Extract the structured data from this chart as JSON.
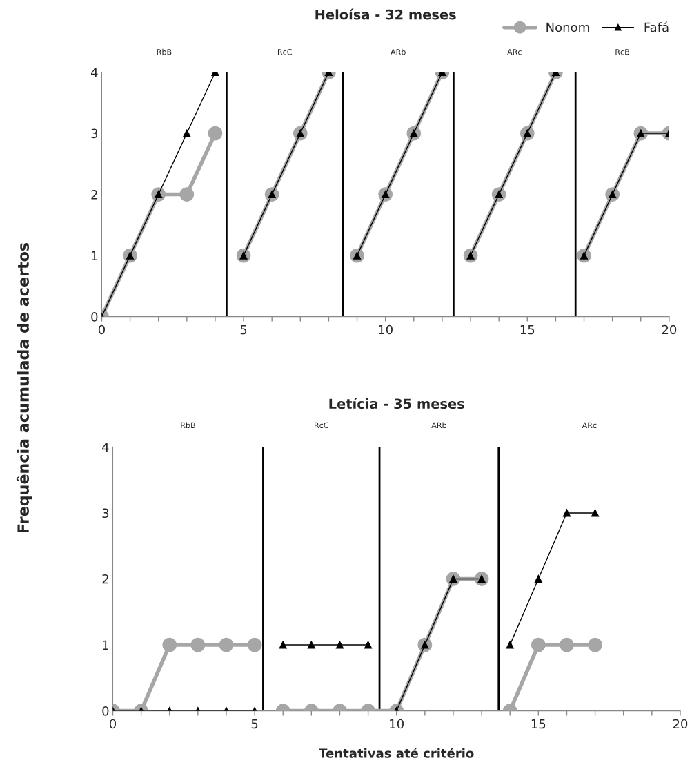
{
  "chart_data": [
    {
      "type": "line",
      "title": "Heloísa - 32 meses",
      "ylabel": "Frequência acumulada de acertos",
      "xlim": [
        0,
        20
      ],
      "ylim": [
        0,
        4
      ],
      "xticks": [
        0,
        {
          "value": 1,
          "label": null
        },
        {
          "value": 2,
          "label": null
        },
        {
          "value": 3,
          "label": null
        },
        {
          "value": 4,
          "label": null
        },
        5,
        {
          "value": 6,
          "label": null
        },
        {
          "value": 7,
          "label": null
        },
        {
          "value": 8,
          "label": null
        },
        {
          "value": 9,
          "label": null
        },
        10,
        {
          "value": 11,
          "label": null
        },
        {
          "value": 12,
          "label": null
        },
        {
          "value": 13,
          "label": null
        },
        {
          "value": 14,
          "label": null
        },
        15,
        {
          "value": 16,
          "label": null
        },
        {
          "value": 17,
          "label": null
        },
        {
          "value": 18,
          "label": null
        },
        {
          "value": 19,
          "label": null
        },
        20
      ],
      "yticks": [
        0,
        1,
        2,
        3,
        4
      ],
      "grid": false,
      "legend": "top right",
      "series": [
        {
          "name": "Nonom",
          "color": "#a6a6a6",
          "marker": "circle",
          "x": [
            0,
            1,
            2,
            3,
            4,
            4.5,
            5,
            6,
            7,
            8,
            8.5,
            9,
            10,
            11,
            12,
            12.5,
            13,
            14,
            15,
            16,
            16.5,
            17,
            18,
            19,
            20
          ],
          "values": [
            0,
            1,
            2,
            2,
            3,
            null,
            1,
            2,
            3,
            4,
            null,
            1,
            2,
            3,
            4,
            null,
            1,
            2,
            3,
            4,
            null,
            1,
            2,
            3,
            3
          ]
        },
        {
          "name": "Fafá",
          "color": "#000000",
          "marker": "triangle",
          "x": [
            0,
            1,
            2,
            3,
            4,
            4.5,
            5,
            6,
            7,
            8,
            8.5,
            9,
            10,
            11,
            12,
            12.5,
            13,
            14,
            15,
            16,
            16.5,
            17,
            18,
            19,
            20
          ],
          "values": [
            0,
            1,
            2,
            3,
            4,
            null,
            1,
            2,
            3,
            4,
            null,
            1,
            2,
            3,
            4,
            null,
            1,
            2,
            3,
            4,
            null,
            1,
            2,
            3,
            3
          ]
        }
      ],
      "ref_lines": [
        {
          "axis": "x",
          "value": 4.4,
          "color": "#000000"
        },
        {
          "axis": "x",
          "value": 8.5,
          "color": "#000000"
        },
        {
          "axis": "x",
          "value": 12.4,
          "color": "#000000"
        },
        {
          "axis": "x",
          "value": 16.7,
          "color": "#000000"
        }
      ],
      "annotations": [
        "RbB",
        "RcC",
        "ARb",
        "ARc",
        "RcB"
      ]
    },
    {
      "type": "line",
      "title": "Letícia - 35 meses",
      "xlabel": "Tentativas até critério",
      "xlim": [
        0,
        20
      ],
      "ylim": [
        0,
        4
      ],
      "xticks": [
        0,
        {
          "value": 1,
          "label": null
        },
        {
          "value": 2,
          "label": null
        },
        {
          "value": 3,
          "label": null
        },
        {
          "value": 4,
          "label": null
        },
        5,
        {
          "value": 6,
          "label": null
        },
        {
          "value": 7,
          "label": null
        },
        {
          "value": 8,
          "label": null
        },
        {
          "value": 9,
          "label": null
        },
        10,
        {
          "value": 11,
          "label": null
        },
        {
          "value": 12,
          "label": null
        },
        {
          "value": 13,
          "label": null
        },
        {
          "value": 14,
          "label": null
        },
        15,
        {
          "value": 16,
          "label": null
        },
        {
          "value": 17,
          "label": null
        },
        {
          "value": 18,
          "label": null
        },
        {
          "value": 19,
          "label": null
        },
        20
      ],
      "yticks": [
        0,
        1,
        2,
        3,
        4
      ],
      "grid": false,
      "series": [
        {
          "color": "#a6a6a6",
          "marker": "circle",
          "x": [
            0,
            1,
            2,
            3,
            4,
            5,
            5.5,
            6,
            7,
            8,
            9,
            10,
            11,
            12,
            13,
            13.5,
            14,
            15,
            16,
            17
          ],
          "values": [
            0,
            0,
            1,
            1,
            1,
            1,
            null,
            0,
            0,
            0,
            0,
            0,
            1,
            2,
            2,
            null,
            0,
            1,
            1,
            1
          ]
        },
        {
          "color": "#000000",
          "marker": "triangle",
          "x": [
            0,
            1,
            2,
            3,
            4,
            5,
            5.5,
            6,
            7,
            8,
            9,
            9.5,
            10,
            11,
            12,
            13,
            13.5,
            14,
            15,
            16,
            17
          ],
          "values": [
            0,
            0,
            0,
            0,
            0,
            0,
            null,
            1,
            1,
            1,
            1,
            null,
            0,
            1,
            2,
            2,
            null,
            1,
            2,
            3,
            3
          ]
        }
      ],
      "ref_lines": [
        {
          "axis": "x",
          "value": 5.3,
          "color": "#000000"
        },
        {
          "axis": "x",
          "value": 9.4,
          "color": "#000000"
        },
        {
          "axis": "x",
          "value": 13.6,
          "color": "#000000"
        }
      ],
      "annotations": [
        "RbB",
        "RcC",
        "ARb",
        "ARc"
      ]
    }
  ]
}
